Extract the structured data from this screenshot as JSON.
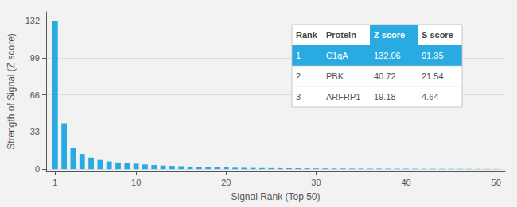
{
  "chart_data": {
    "type": "bar",
    "xlabel": "Signal Rank (Top 50)",
    "ylabel": "Strength of Signal (Z score)",
    "x": [
      1,
      2,
      3,
      4,
      5,
      6,
      7,
      8,
      9,
      10,
      11,
      12,
      13,
      14,
      15,
      16,
      17,
      18,
      19,
      20,
      21,
      22,
      23,
      24,
      25,
      26,
      27,
      28,
      29,
      30,
      31,
      32,
      33,
      34,
      35,
      36,
      37,
      38,
      39,
      40,
      41,
      42,
      43,
      44,
      45,
      46,
      47,
      48,
      49,
      50
    ],
    "values": [
      132.06,
      40.72,
      19.18,
      13.5,
      10.2,
      8.1,
      6.8,
      5.9,
      5.2,
      4.8,
      4.1,
      3.6,
      3.2,
      2.9,
      2.6,
      2.3,
      2.1,
      1.9,
      1.7,
      1.5,
      1.3,
      1.2,
      1.1,
      1.0,
      0.95,
      0.9,
      0.85,
      0.8,
      0.75,
      0.7,
      0.65,
      0.62,
      0.59,
      0.56,
      0.53,
      0.5,
      0.48,
      0.46,
      0.44,
      0.42,
      0.4,
      0.38,
      0.36,
      0.34,
      0.32,
      0.3,
      0.28,
      0.26,
      0.24,
      0.22
    ],
    "color": "#29ABE2",
    "xlim": [
      0,
      51
    ],
    "xticks": [
      1,
      10,
      20,
      30,
      40,
      50
    ],
    "ylim": [
      -2,
      140
    ],
    "yticks": [
      0,
      33,
      66,
      99,
      132
    ],
    "grid": true,
    "table": {
      "header": [
        "Rank",
        "Protein",
        "Z score",
        "S score"
      ],
      "rows": [
        [
          "1",
          "C1qA",
          "132.06",
          "91.35"
        ],
        [
          "2",
          "PBK",
          "40.72",
          "21.54"
        ],
        [
          "3",
          "ARFRP1",
          "19.18",
          "4.64"
        ]
      ]
    }
  }
}
